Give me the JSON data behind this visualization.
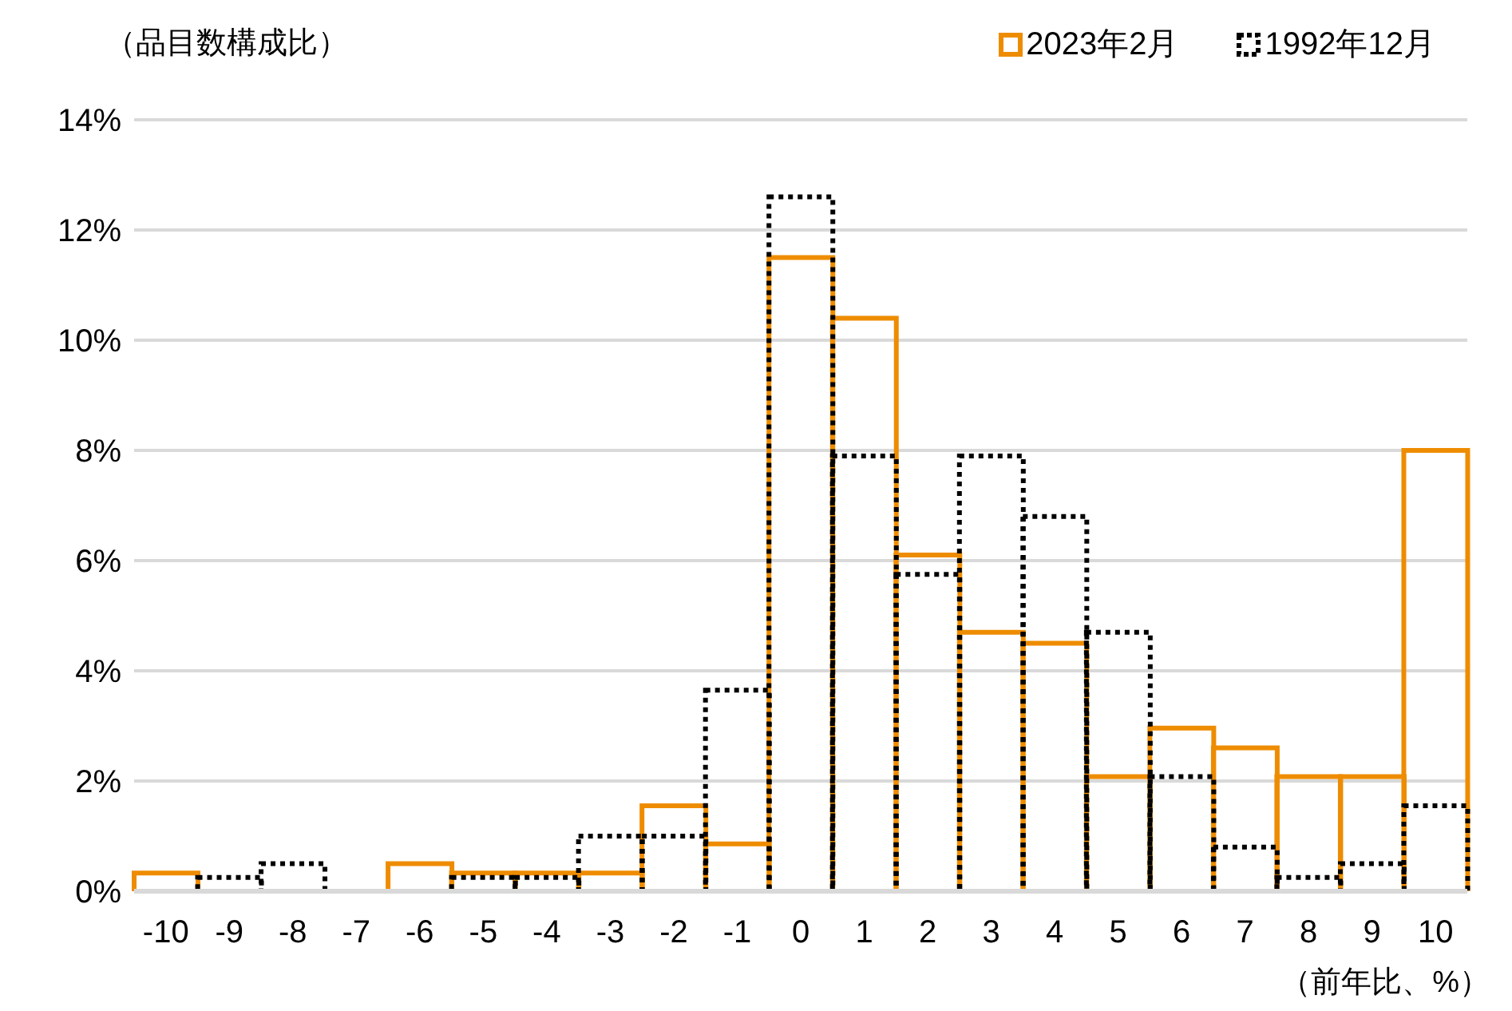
{
  "chart_data": {
    "type": "bar",
    "ylabel": "（品目数構成比）",
    "xlabel": "（前年比、%）",
    "categories": [
      "-10",
      "-9",
      "-8",
      "-7",
      "-6",
      "-5",
      "-4",
      "-3",
      "-2",
      "-1",
      "0",
      "1",
      "2",
      "3",
      "4",
      "5",
      "6",
      "7",
      "8",
      "9",
      "10"
    ],
    "series": [
      {
        "name": "2023年2月",
        "color": "#ee8c00",
        "line_style": "solid",
        "values": [
          0.33,
          0,
          0,
          0,
          0.5,
          0.33,
          0.33,
          0.33,
          1.55,
          0.86,
          11.5,
          10.4,
          6.1,
          4.7,
          4.5,
          2.08,
          2.96,
          2.6,
          2.08,
          2.08,
          8.0
        ]
      },
      {
        "name": "1992年12月",
        "color": "#000000",
        "line_style": "dotted",
        "values": [
          0,
          0.25,
          0.5,
          0,
          0,
          0.25,
          0.25,
          1.0,
          1.0,
          3.65,
          12.6,
          7.9,
          5.75,
          7.9,
          6.8,
          4.7,
          2.08,
          0.8,
          0.25,
          0.5,
          1.55
        ]
      }
    ],
    "ylim": [
      0,
      14
    ],
    "yticks": [
      {
        "value": 0,
        "label": "0%"
      },
      {
        "value": 2,
        "label": "2%"
      },
      {
        "value": 4,
        "label": "4%"
      },
      {
        "value": 6,
        "label": "6%"
      },
      {
        "value": 8,
        "label": "8%"
      },
      {
        "value": 10,
        "label": "10%"
      },
      {
        "value": 12,
        "label": "12%"
      },
      {
        "value": 14,
        "label": "14%"
      }
    ],
    "grid": "y",
    "legend": "top right"
  }
}
